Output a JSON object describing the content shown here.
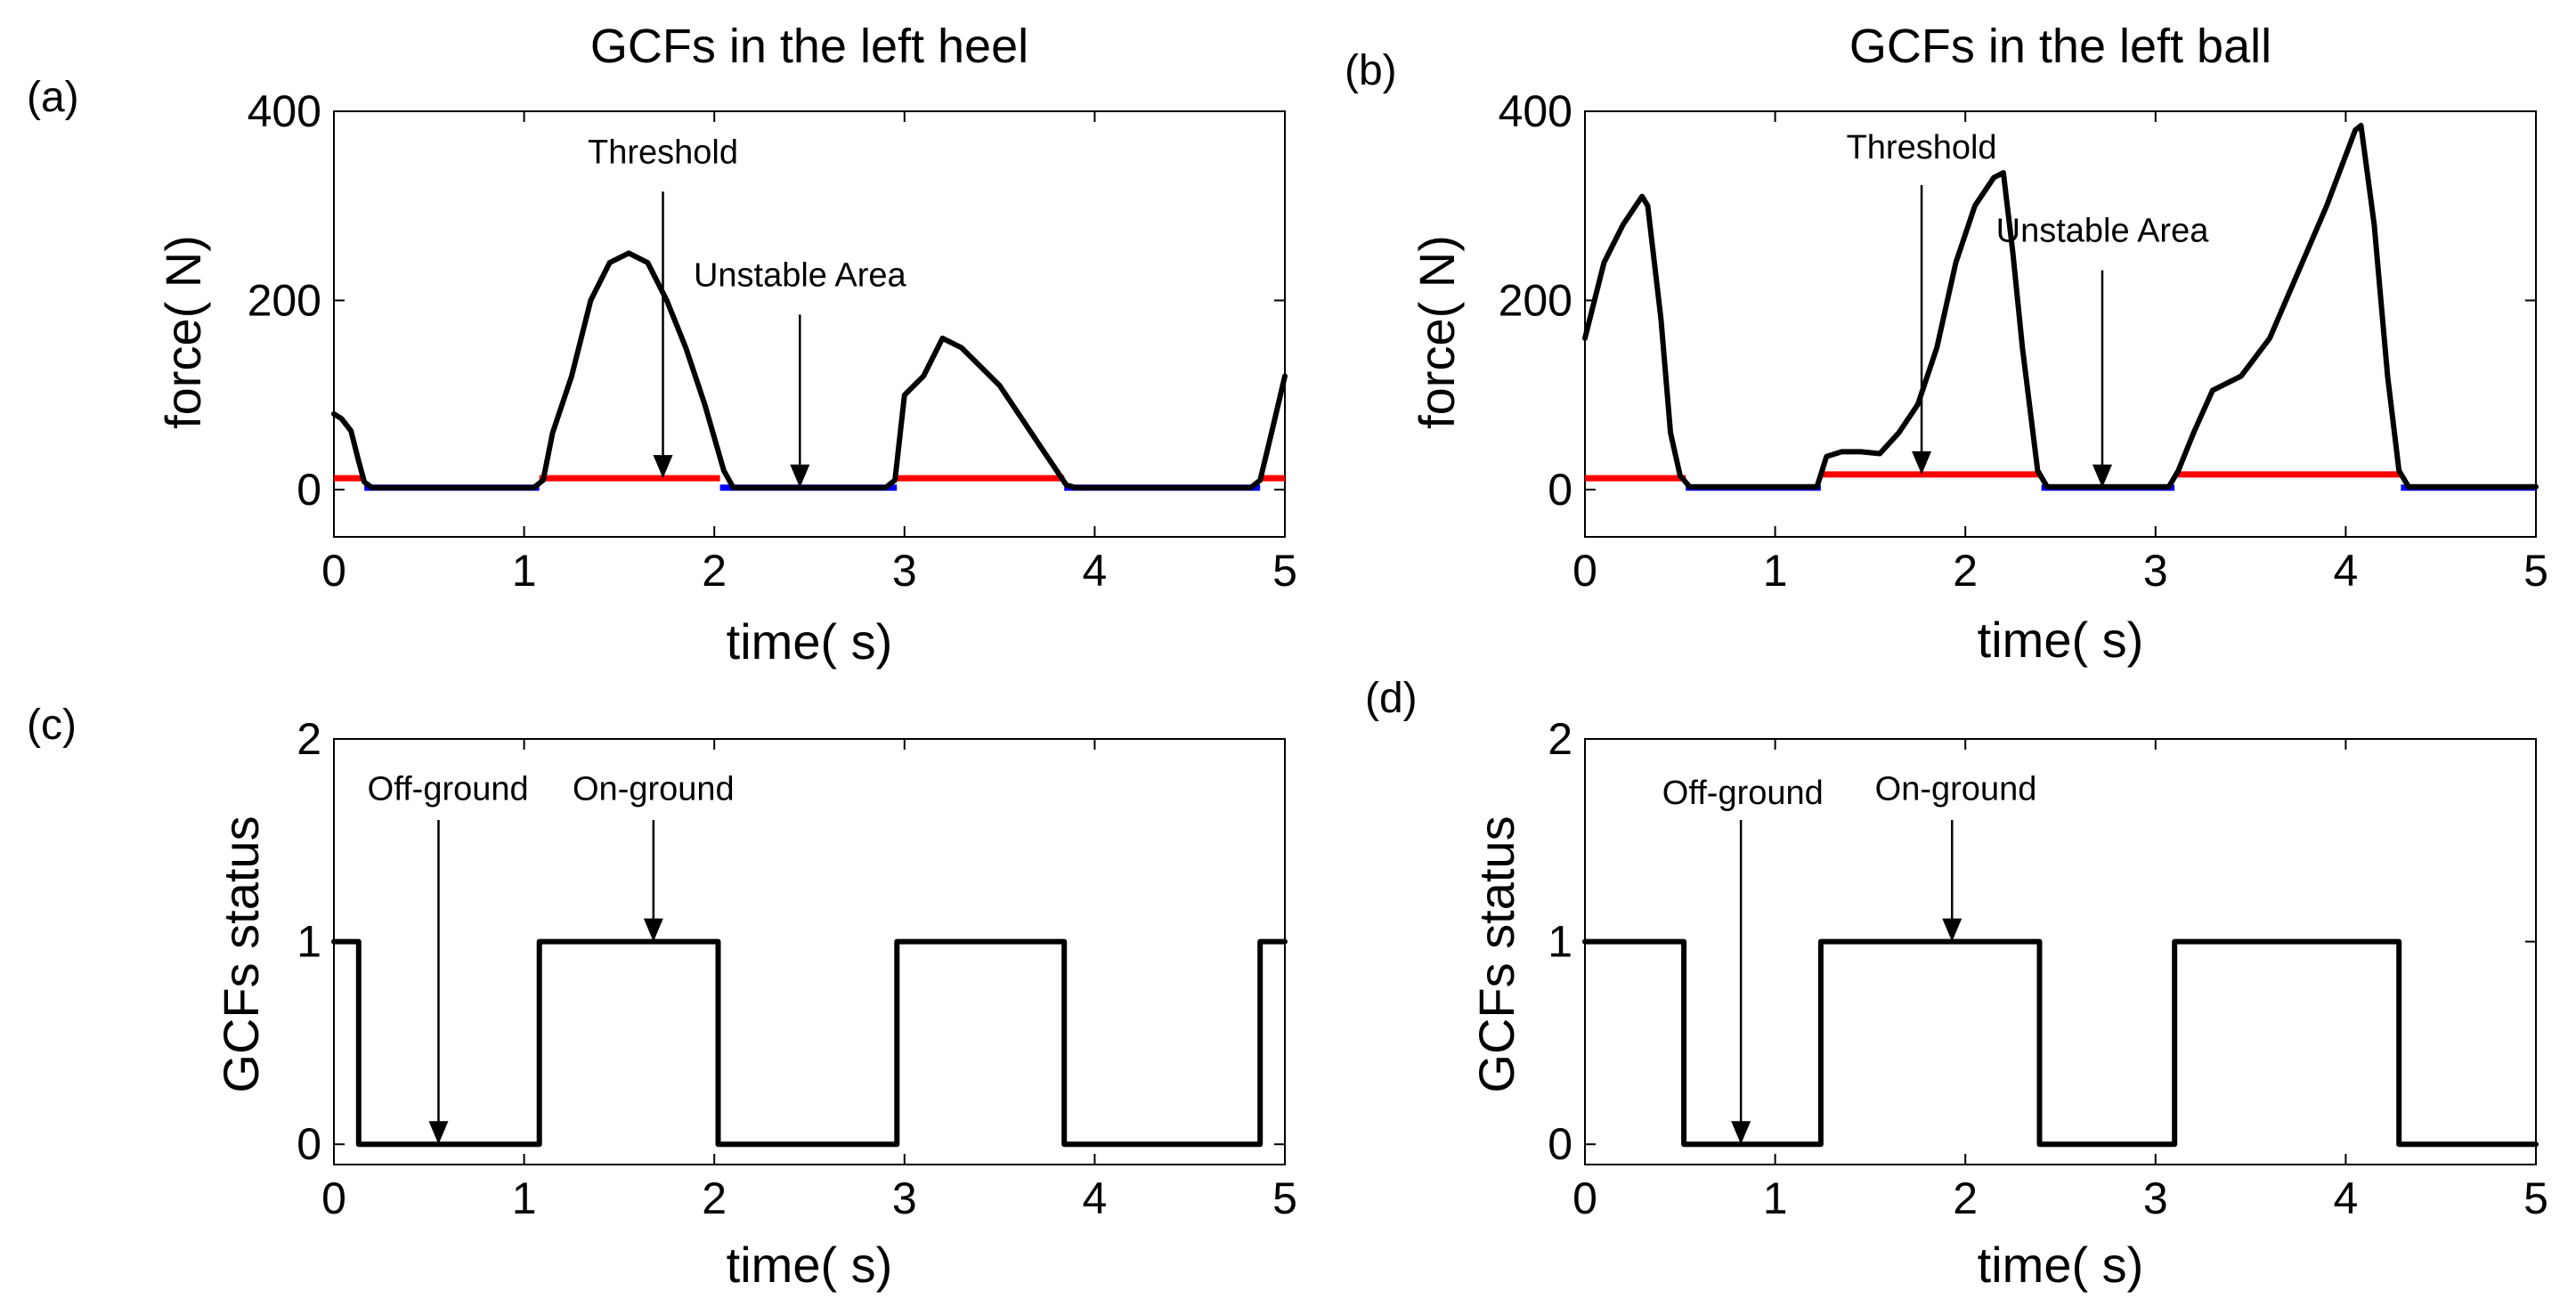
{
  "chart_data": [
    {
      "id": "a",
      "type": "line",
      "panel_label": "(a)",
      "title": "GCFs in the left heel",
      "xlabel": "time( s)",
      "ylabel": "force( N)",
      "xlim": [
        0,
        5
      ],
      "ylim": [
        -50,
        400
      ],
      "xticks": [
        0,
        1,
        2,
        3,
        4,
        5
      ],
      "yticks": [
        0,
        200,
        400
      ],
      "force_series": {
        "name": "force",
        "color": "#000000",
        "x": [
          0,
          0.04,
          0.09,
          0.13,
          0.16,
          0.2,
          1.05,
          1.1,
          1.15,
          1.25,
          1.35,
          1.45,
          1.55,
          1.65,
          1.75,
          1.85,
          1.95,
          2.05,
          2.1,
          2.9,
          2.95,
          3.0,
          3.1,
          3.2,
          3.3,
          3.4,
          3.5,
          3.6,
          3.7,
          3.8,
          3.85,
          3.9,
          4.82,
          4.87,
          4.93,
          5.0
        ],
        "y": [
          80,
          75,
          62,
          30,
          8,
          2,
          2,
          10,
          60,
          120,
          200,
          240,
          250,
          240,
          200,
          150,
          90,
          20,
          2,
          2,
          10,
          100,
          120,
          160,
          150,
          130,
          110,
          80,
          50,
          20,
          5,
          2,
          2,
          10,
          60,
          120
        ]
      },
      "status_bands": [
        {
          "state": "on",
          "color": "#ff0000",
          "x": [
            0,
            0.16
          ],
          "y": 12
        },
        {
          "state": "off",
          "color": "#0000ff",
          "x": [
            0.16,
            1.08
          ],
          "y": 2
        },
        {
          "state": "on",
          "color": "#ff0000",
          "x": [
            1.08,
            2.03
          ],
          "y": 12
        },
        {
          "state": "off",
          "color": "#0000ff",
          "x": [
            2.03,
            2.96
          ],
          "y": 2
        },
        {
          "state": "on",
          "color": "#ff0000",
          "x": [
            2.96,
            3.84
          ],
          "y": 12
        },
        {
          "state": "off",
          "color": "#0000ff",
          "x": [
            3.84,
            4.87
          ],
          "y": 2
        },
        {
          "state": "on",
          "color": "#ff0000",
          "x": [
            4.87,
            5.0
          ],
          "y": 12
        }
      ],
      "annotations": [
        {
          "text": "Threshold",
          "text_x": 1.73,
          "text_y": 345,
          "arrow_x": 1.73,
          "arrow_from_y": 315,
          "arrow_to_y": 12
        },
        {
          "text": "Unstable Area",
          "text_x": 2.45,
          "text_y": 215,
          "arrow_x": 2.45,
          "arrow_from_y": 185,
          "arrow_to_y": 2
        }
      ]
    },
    {
      "id": "b",
      "type": "line",
      "panel_label": "(b)",
      "title": "GCFs in the left ball",
      "xlabel": "time( s)",
      "ylabel": "force( N)",
      "xlim": [
        0,
        5
      ],
      "ylim": [
        -50,
        400
      ],
      "xticks": [
        0,
        1,
        2,
        3,
        4,
        5
      ],
      "yticks": [
        0,
        200,
        400
      ],
      "force_series": {
        "name": "force",
        "color": "#000000",
        "x": [
          0,
          0.05,
          0.1,
          0.2,
          0.3,
          0.33,
          0.4,
          0.45,
          0.5,
          0.55,
          1.22,
          1.27,
          1.35,
          1.45,
          1.55,
          1.65,
          1.75,
          1.85,
          1.95,
          2.05,
          2.15,
          2.2,
          2.25,
          2.3,
          2.38,
          2.43,
          3.07,
          3.12,
          3.2,
          3.3,
          3.45,
          3.6,
          3.75,
          3.9,
          4.05,
          4.08,
          4.15,
          4.22,
          4.28,
          4.33,
          5.0
        ],
        "y": [
          160,
          200,
          240,
          280,
          310,
          300,
          180,
          60,
          15,
          3,
          3,
          35,
          40,
          40,
          38,
          60,
          90,
          150,
          240,
          300,
          330,
          335,
          250,
          150,
          20,
          3,
          3,
          20,
          60,
          105,
          120,
          160,
          230,
          300,
          380,
          385,
          280,
          120,
          20,
          3,
          3
        ]
      },
      "status_bands": [
        {
          "state": "on",
          "color": "#ff0000",
          "x": [
            0,
            0.53
          ],
          "y": 12
        },
        {
          "state": "off",
          "color": "#0000ff",
          "x": [
            0.53,
            1.24
          ],
          "y": 2
        },
        {
          "state": "on",
          "color": "#ff0000",
          "x": [
            1.24,
            2.4
          ],
          "y": 16
        },
        {
          "state": "off",
          "color": "#0000ff",
          "x": [
            2.4,
            3.1
          ],
          "y": 2
        },
        {
          "state": "on",
          "color": "#ff0000",
          "x": [
            3.1,
            4.29
          ],
          "y": 16
        },
        {
          "state": "off",
          "color": "#0000ff",
          "x": [
            4.29,
            5.0
          ],
          "y": 2
        }
      ],
      "annotations": [
        {
          "text": "Threshold",
          "text_x": 1.77,
          "text_y": 350,
          "arrow_x": 1.77,
          "arrow_from_y": 322,
          "arrow_to_y": 16
        },
        {
          "text": "Unstable Area",
          "text_x": 2.72,
          "text_y": 262,
          "arrow_x": 2.72,
          "arrow_from_y": 232,
          "arrow_to_y": 2
        }
      ]
    },
    {
      "id": "c",
      "type": "line",
      "panel_label": "(c)",
      "xlabel": "time( s)",
      "ylabel": "GCFs status",
      "xlim": [
        0,
        5
      ],
      "ylim": [
        -0.1,
        2
      ],
      "xticks": [
        0,
        1,
        2,
        3,
        4,
        5
      ],
      "yticks": [
        0,
        1,
        2
      ],
      "status_series": {
        "name": "status",
        "color": "#000000",
        "x": [
          0,
          0.13,
          0.13,
          1.08,
          1.08,
          2.02,
          2.02,
          2.96,
          2.96,
          3.84,
          3.84,
          4.87,
          4.87,
          5.0
        ],
        "y": [
          1,
          1,
          0,
          0,
          1,
          1,
          0,
          0,
          1,
          1,
          0,
          0,
          1,
          1
        ]
      },
      "annotations": [
        {
          "text": "Off-ground",
          "text_x": 0.6,
          "text_y": 1.7,
          "arrow_x": 0.55,
          "arrow_from_y": 1.6,
          "arrow_to_y": 0
        },
        {
          "text": "On-ground",
          "text_x": 1.68,
          "text_y": 1.7,
          "arrow_x": 1.68,
          "arrow_from_y": 1.6,
          "arrow_to_y": 1
        }
      ]
    },
    {
      "id": "d",
      "type": "line",
      "panel_label": "(d)",
      "xlabel": "time( s)",
      "ylabel": "GCFs status",
      "xlim": [
        0,
        5
      ],
      "ylim": [
        -0.1,
        2
      ],
      "xticks": [
        0,
        1,
        2,
        3,
        4,
        5
      ],
      "yticks": [
        0,
        1,
        2
      ],
      "status_series": {
        "name": "status",
        "color": "#000000",
        "x": [
          0,
          0.52,
          0.52,
          1.24,
          1.24,
          2.39,
          2.39,
          3.1,
          3.1,
          4.28,
          4.28,
          5.0
        ],
        "y": [
          1,
          1,
          0,
          0,
          1,
          1,
          0,
          0,
          1,
          1,
          0,
          0
        ]
      },
      "annotations": [
        {
          "text": "Off-ground",
          "text_x": 0.83,
          "text_y": 1.68,
          "arrow_x": 0.82,
          "arrow_from_y": 1.6,
          "arrow_to_y": 0
        },
        {
          "text": "On-ground",
          "text_x": 1.95,
          "text_y": 1.7,
          "arrow_x": 1.93,
          "arrow_from_y": 1.6,
          "arrow_to_y": 1
        }
      ]
    }
  ]
}
